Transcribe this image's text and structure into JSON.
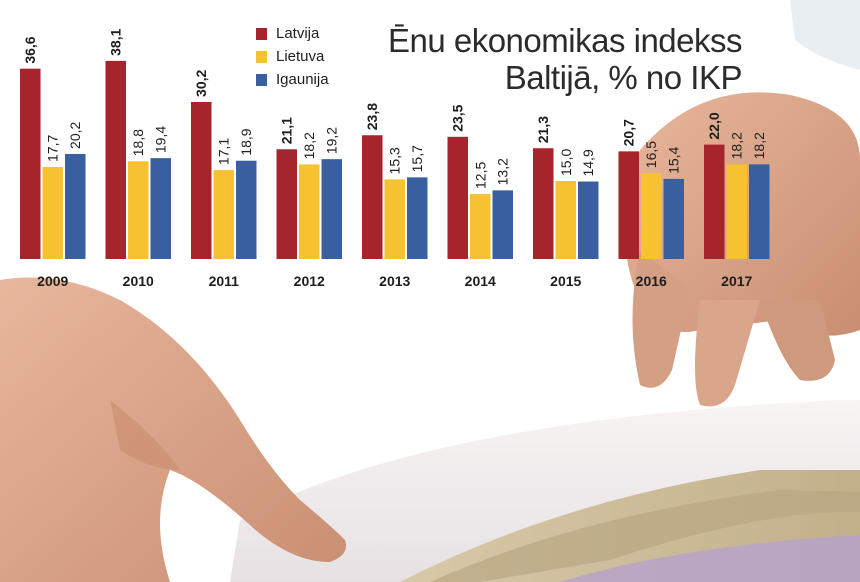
{
  "title_lines": [
    "Ēnu ekonomikas indekss",
    "Baltijā, % no IKP"
  ],
  "colors": {
    "latvija": "#a6242b",
    "lietuva": "#f6c232",
    "igaunija": "#3a5fa0"
  },
  "legend": [
    {
      "label": "Latvija",
      "color": "#a6242b"
    },
    {
      "label": "Lietuva",
      "color": "#f6c232"
    },
    {
      "label": "Igaunija",
      "color": "#3a5fa0"
    }
  ],
  "chart_data": {
    "type": "bar",
    "title": "Ēnu ekonomikas indekss Baltijā, % no IKP",
    "categories": [
      "2009",
      "2010",
      "2011",
      "2012",
      "2013",
      "2014",
      "2015",
      "2016",
      "2017"
    ],
    "series": [
      {
        "name": "Latvija",
        "color": "#a6242b",
        "values": [
          36.6,
          38.1,
          30.2,
          21.1,
          23.8,
          23.5,
          21.3,
          20.7,
          22.0
        ]
      },
      {
        "name": "Lietuva",
        "color": "#f6c232",
        "values": [
          17.7,
          18.8,
          17.1,
          18.2,
          15.3,
          12.5,
          15.0,
          16.5,
          18.2
        ]
      },
      {
        "name": "Igaunija",
        "color": "#3a5fa0",
        "values": [
          20.2,
          19.4,
          18.9,
          19.2,
          15.7,
          13.2,
          14.9,
          15.4,
          18.2
        ]
      }
    ],
    "data_labels": [
      [
        "36,6",
        "38,1",
        "30,2",
        "21,1",
        "23,8",
        "23,5",
        "21,3",
        "20,7",
        "22,0"
      ],
      [
        "17,7",
        "18,8",
        "17,1",
        "18,2",
        "15,3",
        "12,5",
        "15,0",
        "16,5",
        "18,2"
      ],
      [
        "20,2",
        "19,4",
        "18,9",
        "19,2",
        "15,7",
        "13,2",
        "14,9",
        "15,4",
        "18,2"
      ]
    ],
    "ylim": [
      0,
      40
    ],
    "grid": false,
    "legend_position": "top"
  }
}
